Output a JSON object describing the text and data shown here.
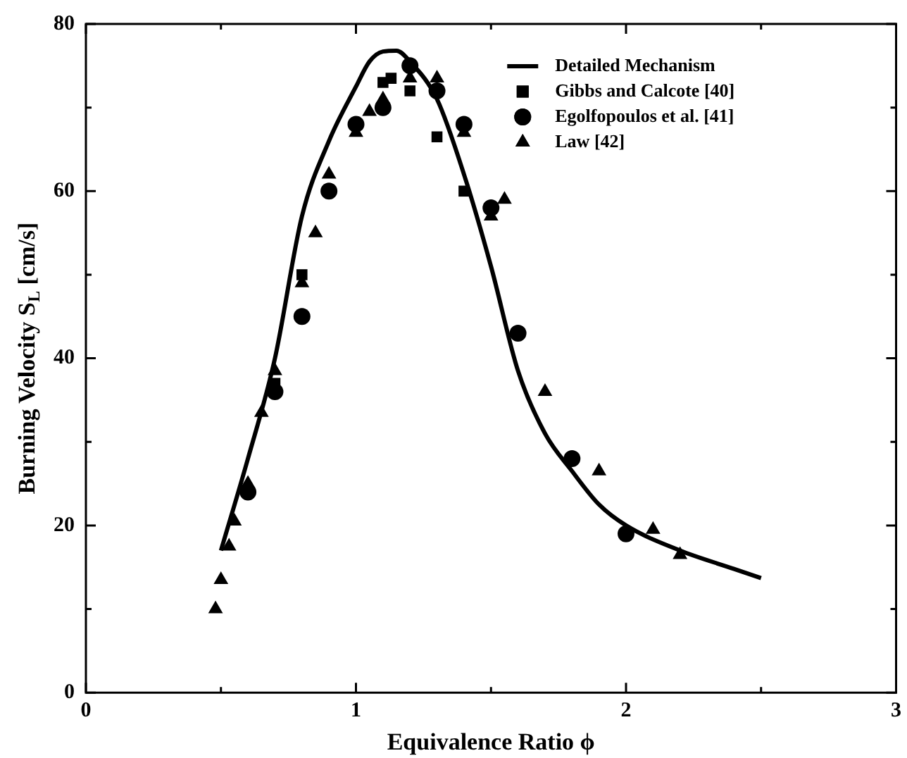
{
  "chart_data": {
    "type": "scatter",
    "xlabel": "Equivalence Ratio ϕ",
    "ylabel": "Burning Velocity S$_{L}$ [cm/s]",
    "xlim": [
      0,
      3
    ],
    "ylim": [
      0,
      80
    ],
    "xticks": [
      0,
      {
        "value": 0.5,
        "label": null
      },
      1,
      {
        "value": 1.5,
        "label": null
      },
      2,
      {
        "value": 2.5,
        "label": null
      },
      3
    ],
    "yticks": [
      0,
      {
        "value": 10,
        "label": null
      },
      20,
      {
        "value": 30,
        "label": null
      },
      40,
      {
        "value": 50,
        "label": null
      },
      60,
      {
        "value": 70,
        "label": null
      },
      80
    ],
    "grid": false,
    "legend": "top right",
    "series": [
      {
        "name": "Detailed Mechanism",
        "type": "line",
        "marker": "none",
        "line_style": "solid",
        "color": "#000000",
        "x": [
          0.5,
          0.6,
          0.7,
          0.8,
          0.9,
          1.0,
          1.05,
          1.1,
          1.15,
          1.2,
          1.3,
          1.4,
          1.5,
          1.6,
          1.7,
          1.8,
          1.9,
          2.0,
          2.2,
          2.4,
          2.5
        ],
        "values": [
          17,
          28,
          40,
          57,
          66,
          72.5,
          75.5,
          76.7,
          76.8,
          75.5,
          71,
          62,
          51,
          38.5,
          31,
          26.5,
          22.5,
          20,
          17,
          14.8,
          13.7
        ]
      },
      {
        "name": "Gibbs and Calcote [40]",
        "type": "scatter",
        "marker": "square",
        "color": "#000000",
        "x": [
          0.7,
          0.8,
          1.1,
          1.13,
          1.2,
          1.3,
          1.4
        ],
        "values": [
          37,
          50,
          73,
          73.5,
          72,
          66.5,
          60
        ]
      },
      {
        "name": "Egolfopoulos et al. [41]",
        "type": "scatter",
        "marker": "circle",
        "color": "#000000",
        "x": [
          0.6,
          0.7,
          0.8,
          0.9,
          1.0,
          1.1,
          1.2,
          1.3,
          1.4,
          1.5,
          1.6,
          1.8,
          2.0
        ],
        "values": [
          24,
          36,
          45,
          60,
          68,
          70,
          75,
          72,
          68,
          58,
          43,
          28,
          19
        ]
      },
      {
        "name": "Law [42]",
        "type": "scatter",
        "marker": "triangle",
        "color": "#000000",
        "x": [
          0.48,
          0.5,
          0.53,
          0.55,
          0.6,
          0.65,
          0.7,
          0.8,
          0.85,
          0.9,
          1.0,
          1.05,
          1.1,
          1.2,
          1.3,
          1.4,
          1.5,
          1.55,
          1.7,
          1.9,
          2.1,
          2.2
        ],
        "values": [
          10,
          13.5,
          17.5,
          20.5,
          25,
          33.5,
          38.5,
          49,
          55,
          62,
          67,
          69.5,
          71,
          73.5,
          73.5,
          67,
          57,
          59,
          36,
          26.5,
          19.5,
          16.5
        ]
      }
    ]
  }
}
